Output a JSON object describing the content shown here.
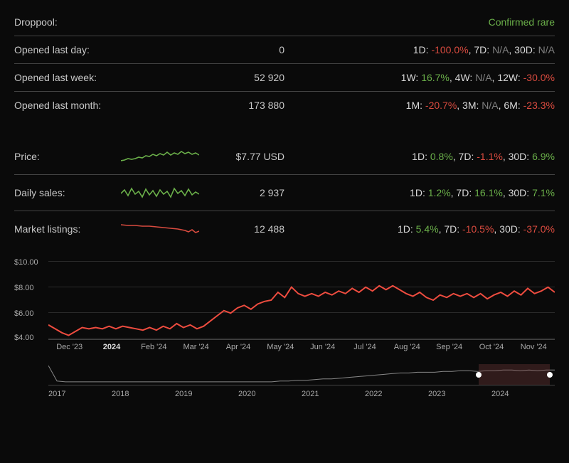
{
  "colors": {
    "green": "#6bb04a",
    "red": "#d94b3f",
    "gray": "#808080",
    "white": "#d8d8d8",
    "bg": "#0a0a0a",
    "border": "#444444",
    "grid": "#2a2a2a",
    "chart_line": "#ee4c3f"
  },
  "droppool": {
    "label": "Droppool:",
    "status": "Confirmed rare"
  },
  "rows_top": [
    {
      "label": "Opened last day:",
      "value": "0",
      "stats": [
        {
          "k": "1D:",
          "v": "-100.0%",
          "c": "red"
        },
        {
          "k": ", 7D:",
          "v": "N/A",
          "c": "gray"
        },
        {
          "k": ", 30D:",
          "v": "N/A",
          "c": "gray"
        }
      ]
    },
    {
      "label": "Opened last week:",
      "value": "52 920",
      "stats": [
        {
          "k": "1W:",
          "v": "16.7%",
          "c": "green"
        },
        {
          "k": ", 4W:",
          "v": "N/A",
          "c": "gray"
        },
        {
          "k": ", 12W:",
          "v": "-30.0%",
          "c": "red"
        }
      ]
    },
    {
      "label": "Opened last month:",
      "value": "173 880",
      "stats": [
        {
          "k": "1M:",
          "v": "-20.7%",
          "c": "red"
        },
        {
          "k": ", 3M:",
          "v": "N/A",
          "c": "gray"
        },
        {
          "k": ", 6M:",
          "v": "-23.3%",
          "c": "red"
        }
      ]
    }
  ],
  "rows_bottom": [
    {
      "label": "Price:",
      "value": "$7.77 USD",
      "spark_color": "#6bb04a",
      "spark_points": [
        0,
        20,
        5,
        19,
        10,
        17,
        15,
        18,
        20,
        17,
        25,
        15,
        30,
        16,
        35,
        13,
        40,
        14,
        45,
        11,
        50,
        13,
        55,
        10,
        60,
        12,
        65,
        8,
        70,
        12,
        75,
        9,
        80,
        11,
        85,
        7,
        90,
        10,
        95,
        8,
        100,
        11,
        105,
        9,
        110,
        12
      ],
      "stats": [
        {
          "k": "1D:",
          "v": "0.8%",
          "c": "green"
        },
        {
          "k": ", 7D:",
          "v": "-1.1%",
          "c": "red"
        },
        {
          "k": ", 30D:",
          "v": "6.9%",
          "c": "green"
        }
      ]
    },
    {
      "label": "Daily sales:",
      "value": "2 937",
      "spark_color": "#6bb04a",
      "spark_points": [
        0,
        15,
        5,
        10,
        10,
        18,
        15,
        8,
        20,
        16,
        25,
        12,
        30,
        20,
        35,
        9,
        40,
        17,
        45,
        11,
        50,
        19,
        55,
        10,
        60,
        16,
        65,
        12,
        70,
        20,
        75,
        8,
        80,
        15,
        85,
        11,
        90,
        18,
        95,
        9,
        100,
        17,
        105,
        13,
        110,
        16
      ],
      "stats": [
        {
          "k": "1D:",
          "v": "1.2%",
          "c": "green"
        },
        {
          "k": ", 7D:",
          "v": "16.1%",
          "c": "green"
        },
        {
          "k": ", 30D:",
          "v": "7.1%",
          "c": "green"
        }
      ]
    },
    {
      "label": "Market listings:",
      "value": "12 488",
      "spark_color": "#d94b3f",
      "spark_points": [
        0,
        8,
        10,
        9,
        20,
        9,
        30,
        10,
        40,
        10,
        50,
        11,
        60,
        12,
        70,
        13,
        80,
        14,
        90,
        16,
        95,
        18,
        100,
        15,
        105,
        19,
        110,
        17
      ],
      "stats": [
        {
          "k": "1D:",
          "v": "5.4%",
          "c": "green"
        },
        {
          "k": ", 7D:",
          "v": "-10.5%",
          "c": "red"
        },
        {
          "k": ", 30D:",
          "v": "-37.0%",
          "c": "red"
        }
      ]
    }
  ],
  "main_chart": {
    "ylim": [
      4,
      10
    ],
    "yticks": [
      "$10.00",
      "$8.00",
      "$6.00",
      "$4.00"
    ],
    "xticks": [
      "Dec '23",
      "2024",
      "Feb '24",
      "Mar '24",
      "Apr '24",
      "May '24",
      "Jun '24",
      "Jul '24",
      "Aug '24",
      "Sep '24",
      "Oct '24",
      "Nov '24"
    ],
    "xtick_bold_index": 1,
    "line_color": "#ee4c3f",
    "line_width": 2,
    "data": [
      5.1,
      4.8,
      4.5,
      4.3,
      4.6,
      4.9,
      4.8,
      4.9,
      4.8,
      5.0,
      4.8,
      5.0,
      4.9,
      4.8,
      4.7,
      4.9,
      4.7,
      5.0,
      4.8,
      5.2,
      4.9,
      5.1,
      4.8,
      5.0,
      5.4,
      5.8,
      6.2,
      6.0,
      6.4,
      6.6,
      6.3,
      6.7,
      6.9,
      7.0,
      7.6,
      7.2,
      8.0,
      7.5,
      7.3,
      7.5,
      7.3,
      7.6,
      7.4,
      7.7,
      7.5,
      7.9,
      7.6,
      8.0,
      7.7,
      8.1,
      7.8,
      8.1,
      7.8,
      7.5,
      7.3,
      7.6,
      7.2,
      7.0,
      7.4,
      7.2,
      7.5,
      7.3,
      7.5,
      7.2,
      7.5,
      7.1,
      7.4,
      7.6,
      7.3,
      7.7,
      7.4,
      7.9,
      7.5,
      7.7,
      8.0,
      7.6
    ]
  },
  "mini_chart": {
    "xticks": [
      "2017",
      "2018",
      "2019",
      "2020",
      "2021",
      "2022",
      "2023",
      "2024"
    ],
    "line_color": "#888888",
    "selection": {
      "left_pct": 85,
      "right_pct": 99
    },
    "data": [
      25,
      4,
      3,
      3,
      3,
      3,
      3,
      3,
      3,
      3,
      3,
      3,
      3,
      3,
      3,
      3,
      3,
      3,
      3,
      3,
      3,
      3,
      3,
      3,
      3,
      3,
      3,
      4,
      4,
      5,
      5,
      6,
      7,
      7,
      8,
      9,
      10,
      11,
      12,
      13,
      14,
      15,
      15,
      16,
      16,
      16,
      17,
      17,
      18,
      18,
      17,
      18,
      18,
      19,
      19,
      18,
      19,
      18,
      19,
      19
    ]
  }
}
